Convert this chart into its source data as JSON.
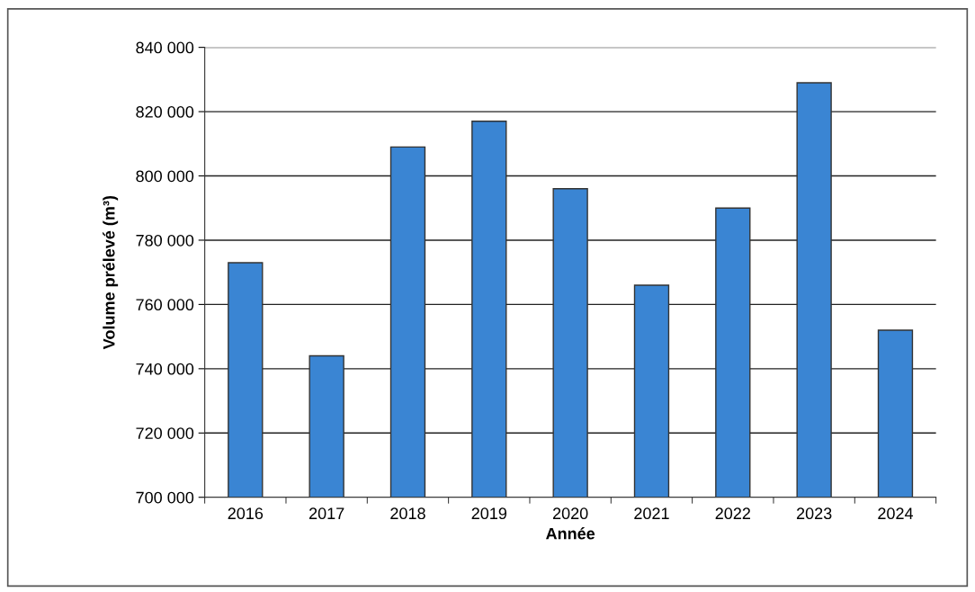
{
  "chart_data": {
    "type": "bar",
    "xlabel": "Année",
    "ylabel": "Volume prélevé (m³)",
    "categories": [
      "2016",
      "2017",
      "2018",
      "2019",
      "2020",
      "2021",
      "2022",
      "2023",
      "2024"
    ],
    "values": [
      773000,
      744000,
      809000,
      817000,
      796000,
      766000,
      790000,
      829000,
      752000
    ],
    "color": "#3a85d3",
    "ylim": [
      700000,
      840000
    ],
    "yticks": [
      {
        "value": 700000,
        "label": "700 000"
      },
      {
        "value": 720000,
        "label": "720 000"
      },
      {
        "value": 740000,
        "label": "740 000"
      },
      {
        "value": 760000,
        "label": "760 000"
      },
      {
        "value": 780000,
        "label": "780 000"
      },
      {
        "value": 800000,
        "label": "800 000"
      },
      {
        "value": 820000,
        "label": "820 000"
      },
      {
        "value": 840000,
        "label": "840 000"
      }
    ],
    "grid": "y",
    "legend": false
  }
}
